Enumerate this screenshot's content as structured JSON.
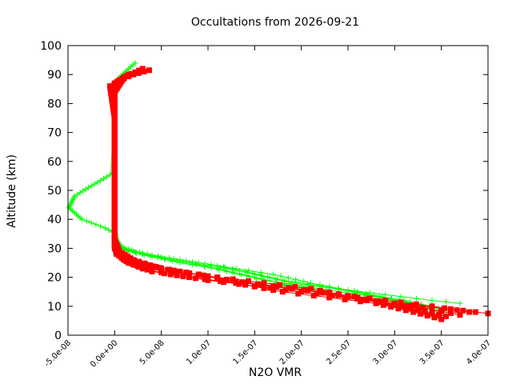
{
  "chart_data": {
    "type": "scatter",
    "title": "Occultations from 2026-09-21",
    "xlabel": "N2O VMR",
    "ylabel": "Altitude (km)",
    "xlim": [
      -5e-08,
      4e-07
    ],
    "ylim": [
      0,
      100
    ],
    "x_ticks": [
      "-5.0e-08",
      "0.0e+00",
      "5.0e-08",
      "1.0e-07",
      "1.5e-07",
      "2.0e-07",
      "2.5e-07",
      "3.0e-07",
      "3.5e-07",
      "4.0e-07"
    ],
    "x_tick_values": [
      -5e-08,
      0,
      5e-08,
      1e-07,
      1.5e-07,
      2e-07,
      2.5e-07,
      3e-07,
      3.5e-07,
      4e-07
    ],
    "y_ticks": [
      "0",
      "10",
      "20",
      "30",
      "40",
      "50",
      "60",
      "70",
      "80",
      "90",
      "100"
    ],
    "y_tick_values": [
      0,
      10,
      20,
      30,
      40,
      50,
      60,
      70,
      80,
      90,
      100
    ],
    "grid": false,
    "legend": "none",
    "series": [
      {
        "color": "#00ff00",
        "marker": "plus",
        "profiles": [
          [
            [
              3.55e-07,
              7
            ],
            [
              3.3e-07,
              10
            ],
            [
              2.85e-07,
              13
            ],
            [
              2.4e-07,
              15
            ],
            [
              2e-07,
              17
            ],
            [
              1.6e-07,
              19
            ],
            [
              1.2e-07,
              22
            ],
            [
              8e-08,
              25
            ],
            [
              4e-08,
              27
            ],
            [
              1.5e-08,
              29
            ],
            [
              3e-09,
              31
            ],
            [
              1e-09,
              35
            ],
            [
              -1e-08,
              37
            ],
            [
              -3.5e-08,
              40
            ],
            [
              -4.9e-08,
              44
            ],
            [
              -4.3e-08,
              48
            ],
            [
              -2.8e-08,
              51
            ],
            [
              -1.2e-08,
              54
            ],
            [
              -2e-09,
              56
            ],
            [
              0,
              65
            ],
            [
              0,
              75
            ],
            [
              -3e-09,
              82
            ],
            [
              0,
              86
            ],
            [
              5e-09,
              89
            ],
            [
              1.5e-08,
              92
            ],
            [
              2.2e-08,
              94
            ]
          ],
          [
            [
              3.6e-07,
              8
            ],
            [
              3.4e-07,
              10
            ],
            [
              3.05e-07,
              12
            ],
            [
              2.6e-07,
              15
            ],
            [
              2.1e-07,
              18
            ],
            [
              1.7e-07,
              21
            ],
            [
              1.3e-07,
              23
            ],
            [
              9e-08,
              25
            ],
            [
              5e-08,
              27
            ],
            [
              2e-08,
              29
            ],
            [
              5e-09,
              31
            ],
            [
              0,
              34
            ],
            [
              0,
              45
            ],
            [
              0,
              60
            ],
            [
              0,
              75
            ],
            [
              0,
              85
            ],
            [
              1e-08,
              90
            ],
            [
              2.5e-08,
              91
            ]
          ],
          [
            [
              3.7e-07,
              11
            ],
            [
              3.4e-07,
              12
            ],
            [
              2.9e-07,
              14
            ],
            [
              2.4e-07,
              16
            ],
            [
              1.9e-07,
              18
            ],
            [
              1.5e-07,
              21
            ],
            [
              1.1e-07,
              24
            ],
            [
              7e-08,
              26
            ],
            [
              3.5e-08,
              28
            ],
            [
              1e-08,
              30
            ],
            [
              0,
              33
            ],
            [
              0,
              40
            ],
            [
              0,
              55
            ],
            [
              0,
              70
            ],
            [
              0,
              84
            ]
          ],
          [
            [
              3.4e-07,
              9
            ],
            [
              3.1e-07,
              12
            ],
            [
              2.7e-07,
              14
            ],
            [
              2.2e-07,
              17
            ],
            [
              1.8e-07,
              19
            ],
            [
              1.4e-07,
              22
            ],
            [
              1e-07,
              24
            ],
            [
              6e-08,
              26
            ],
            [
              3e-08,
              28
            ],
            [
              8e-09,
              30
            ],
            [
              0,
              32
            ],
            [
              0,
              50
            ],
            [
              0,
              80
            ]
          ],
          [
            [
              3.45e-07,
              6
            ],
            [
              3.2e-07,
              9
            ],
            [
              2.8e-07,
              12
            ],
            [
              2.3e-07,
              14
            ],
            [
              1.9e-07,
              17
            ],
            [
              1.5e-07,
              20
            ],
            [
              1.1e-07,
              23
            ],
            [
              7e-08,
              25
            ],
            [
              3e-08,
              28
            ],
            [
              5e-09,
              30
            ],
            [
              0,
              33
            ]
          ]
        ]
      },
      {
        "color": "#ff0000",
        "marker": "square",
        "profiles": [
          [
            [
              4e-07,
              7.5
            ],
            [
              3.6e-07,
              9
            ],
            [
              3e-07,
              11
            ],
            [
              2.5e-07,
              13
            ],
            [
              2e-07,
              15
            ],
            [
              1.5e-07,
              17
            ],
            [
              1e-07,
              19
            ],
            [
              6e-08,
              21
            ],
            [
              3e-08,
              23
            ],
            [
              1e-08,
              26
            ],
            [
              3e-09,
              29
            ],
            [
              0,
              32
            ],
            [
              0,
              40
            ],
            [
              0,
              55
            ],
            [
              0,
              70
            ],
            [
              0,
              80
            ],
            [
              -3e-09,
              86
            ],
            [
              5e-09,
              88
            ],
            [
              2e-08,
              90
            ],
            [
              3.7e-08,
              91.5
            ]
          ],
          [
            [
              3.8e-07,
              8
            ],
            [
              3.4e-07,
              10
            ],
            [
              2.9e-07,
              12
            ],
            [
              2.4e-07,
              14
            ],
            [
              1.9e-07,
              16
            ],
            [
              1.4e-07,
              18
            ],
            [
              9e-08,
              21
            ],
            [
              5e-08,
              23
            ],
            [
              2e-08,
              26
            ],
            [
              5e-09,
              29
            ],
            [
              0,
              33
            ],
            [
              0,
              60
            ],
            [
              0,
              84
            ],
            [
              1e-08,
              89
            ],
            [
              3e-08,
              92
            ]
          ],
          [
            [
              3.5e-07,
              5.5
            ],
            [
              3.2e-07,
              8
            ],
            [
              2.8e-07,
              11
            ],
            [
              2.3e-07,
              13
            ],
            [
              1.8e-07,
              15
            ],
            [
              1.3e-07,
              18
            ],
            [
              8e-08,
              20
            ],
            [
              4e-08,
              22
            ],
            [
              1.5e-08,
              25
            ],
            [
              2e-09,
              28
            ],
            [
              0,
              31
            ],
            [
              0,
              50
            ],
            [
              0,
              75
            ],
            [
              -5e-09,
              86
            ]
          ],
          [
            [
              3.7e-07,
              7
            ],
            [
              3.3e-07,
              9.5
            ],
            [
              2.7e-07,
              12
            ],
            [
              2.2e-07,
              15
            ],
            [
              1.7e-07,
              17
            ],
            [
              1.2e-07,
              19
            ],
            [
              7e-08,
              22
            ],
            [
              3.5e-08,
              24
            ],
            [
              1.2e-08,
              27
            ],
            [
              0,
              30
            ],
            [
              0,
              45
            ],
            [
              0,
              65
            ],
            [
              0,
              87
            ],
            [
              1.5e-08,
              90
            ]
          ],
          [
            [
              3.55e-07,
              6.5
            ],
            [
              3.1e-07,
              10
            ],
            [
              2.6e-07,
              13
            ],
            [
              2.1e-07,
              16
            ],
            [
              1.6e-07,
              18
            ],
            [
              1.1e-07,
              20
            ],
            [
              6.5e-08,
              22
            ],
            [
              2.5e-08,
              25
            ],
            [
              5e-09,
              28
            ],
            [
              0,
              31
            ],
            [
              0,
              55
            ],
            [
              0,
              85
            ]
          ]
        ]
      }
    ]
  }
}
